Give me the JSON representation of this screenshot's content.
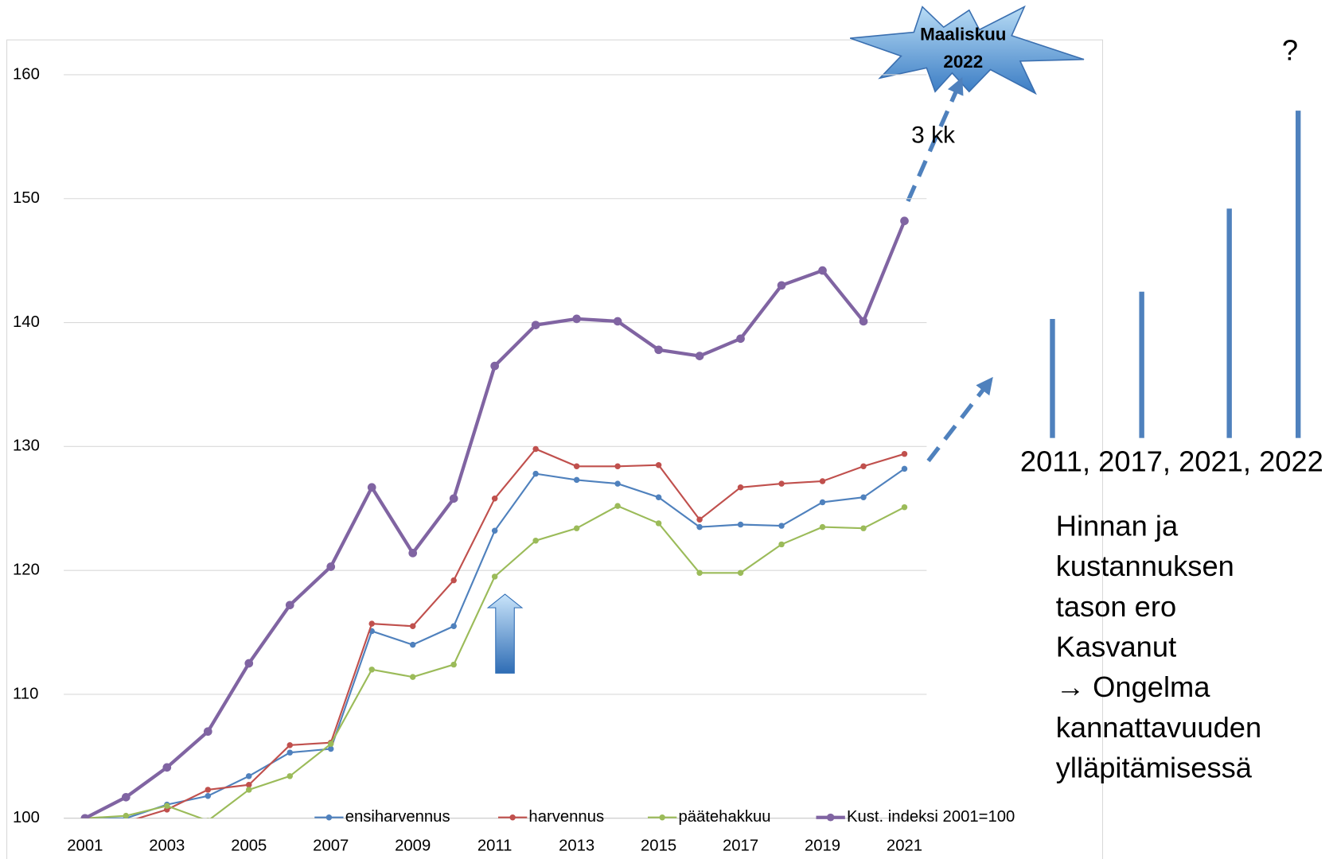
{
  "chart_data": [
    {
      "type": "line",
      "x": [
        2001,
        2002,
        2003,
        2004,
        2005,
        2006,
        2007,
        2008,
        2009,
        2010,
        2011,
        2012,
        2013,
        2014,
        2015,
        2016,
        2017,
        2018,
        2019,
        2020,
        2021
      ],
      "series": [
        {
          "name": "ensiharvennus",
          "color": "#4f81bd",
          "values": [
            100,
            100,
            101.1,
            101.8,
            103.4,
            105.3,
            105.6,
            115.1,
            114,
            115.5,
            123.2,
            127.8,
            127.3,
            127,
            125.9,
            123.5,
            123.7,
            123.6,
            125.5,
            125.9,
            128.2
          ]
        },
        {
          "name": "harvennus",
          "color": "#c0504d",
          "values": [
            100,
            99.7,
            100.7,
            102.3,
            102.7,
            105.9,
            106.1,
            115.7,
            115.5,
            119.2,
            125.8,
            129.8,
            128.4,
            128.4,
            128.5,
            124.1,
            126.7,
            127,
            127.2,
            128.4,
            129.4
          ]
        },
        {
          "name": "päätehakkuu",
          "color": "#9bbb59",
          "values": [
            100,
            100.2,
            101,
            99.8,
            102.3,
            103.4,
            106,
            112,
            111.4,
            112.4,
            119.5,
            122.4,
            123.4,
            125.2,
            123.8,
            119.8,
            119.8,
            122.1,
            123.5,
            123.4,
            125.1
          ]
        },
        {
          "name": "Kust. indeksi 2001=100",
          "color": "#8064a2",
          "values": [
            100,
            101.7,
            104.1,
            107,
            112.5,
            117.2,
            120.3,
            126.7,
            121.4,
            125.8,
            136.5,
            139.8,
            140.3,
            140.1,
            137.8,
            137.3,
            138.7,
            143,
            144.2,
            140.1,
            148.2
          ]
        }
      ],
      "xlim": [
        2000.5,
        2021.5
      ],
      "xticks": [
        2001,
        2003,
        2005,
        2007,
        2009,
        2011,
        2013,
        2015,
        2017,
        2019,
        2021
      ],
      "ylim": [
        100,
        160
      ],
      "yticks": [
        100,
        110,
        120,
        130,
        140,
        150,
        160
      ],
      "grid": true,
      "legend": "bottom",
      "annotations": {
        "burst": [
          "Maaliskuu",
          "2022"
        ],
        "arrow_label": "3 kk"
      }
    },
    {
      "type": "bar",
      "values": [
        140.3,
        142.5,
        149.2,
        157.1
      ],
      "color": "#4f81bd",
      "ylim": [
        130.7,
        160
      ],
      "x_label": "2011, 2017, 2021, 2022",
      "annotation": "?",
      "text": [
        "Hinnan ja",
        "kustannuksen",
        "tason ero",
        "Kasvanut",
        "→ Ongelma",
        "kannattavuuden",
        "ylläpitämisessä"
      ]
    }
  ]
}
